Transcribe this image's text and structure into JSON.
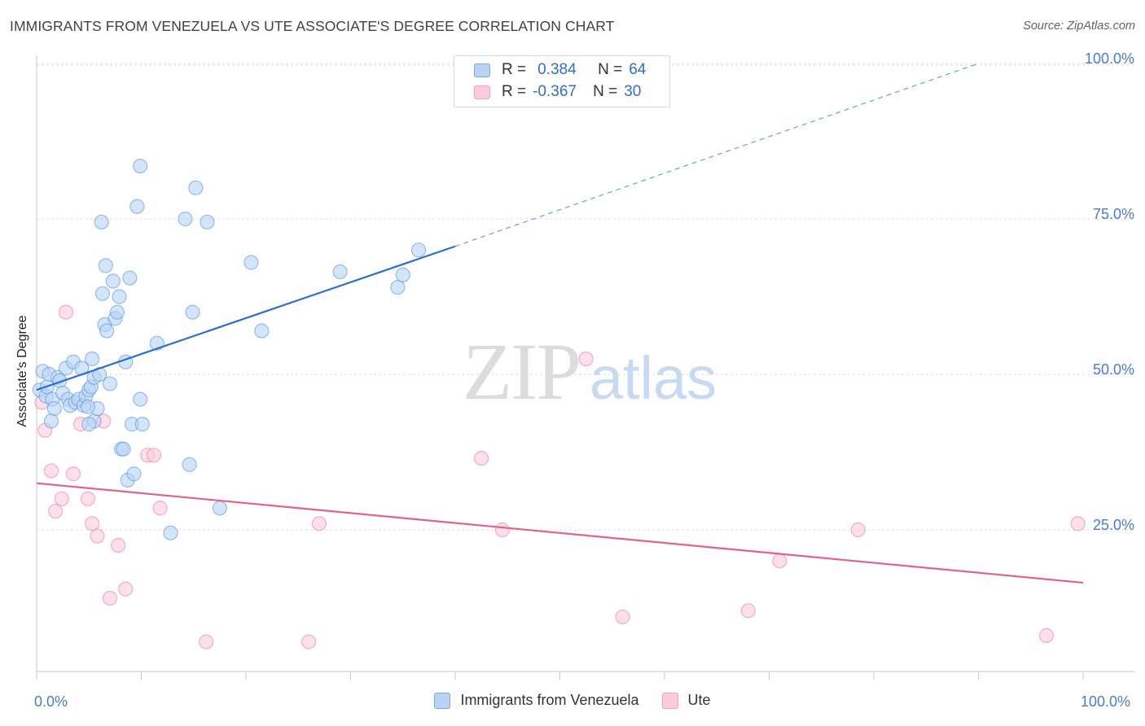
{
  "header": {
    "title": "IMMIGRANTS FROM VENEZUELA VS UTE ASSOCIATE'S DEGREE CORRELATION CHART",
    "source": "Source: ZipAtlas.com"
  },
  "watermark": {
    "zip": "ZIP",
    "atlas": "atlas"
  },
  "legend": {
    "r_label": "R =",
    "n_label": "N =",
    "rows": [
      {
        "r": "0.384",
        "n": "64",
        "color": "#4d8fe0",
        "fill": "#b9d3f5"
      },
      {
        "r": "-0.367",
        "n": "30",
        "color": "#e8769c",
        "fill": "#fbcbda"
      }
    ]
  },
  "chart_data": {
    "type": "scatter",
    "title": "IMMIGRANTS FROM VENEZUELA VS UTE ASSOCIATE'S DEGREE CORRELATION CHART",
    "xlabel": "",
    "ylabel": "Associate's Degree",
    "xlim": [
      0,
      100
    ],
    "ylim": [
      0,
      102
    ],
    "x_tick_labels": [
      "0.0%",
      "100.0%"
    ],
    "y_ticks": [
      25,
      50,
      75,
      100
    ],
    "y_tick_labels": [
      "25.0%",
      "50.0%",
      "75.0%",
      "100.0%"
    ],
    "grid": true,
    "legend_position": "bottom-center",
    "series": [
      {
        "name": "Immigrants from Venezuela",
        "color": "#4d8fe0",
        "fill": "#b9d3f5",
        "trend": {
          "x0": 0,
          "y0": 47.5,
          "x1": 40,
          "y1": 70.6,
          "dashed_to_x": 90,
          "dashed_to_y": 100
        },
        "points": [
          [
            0.3,
            47.5
          ],
          [
            0.6,
            50.5
          ],
          [
            0.9,
            46.5
          ],
          [
            1.0,
            48.0
          ],
          [
            1.2,
            50.0
          ],
          [
            1.5,
            46.0
          ],
          [
            1.7,
            44.5
          ],
          [
            1.4,
            42.5
          ],
          [
            2.0,
            49.5
          ],
          [
            2.2,
            49.0
          ],
          [
            2.5,
            47.0
          ],
          [
            2.8,
            51.0
          ],
          [
            3.0,
            46.0
          ],
          [
            3.2,
            45.0
          ],
          [
            3.5,
            52.0
          ],
          [
            3.7,
            45.5
          ],
          [
            4.0,
            46.0
          ],
          [
            4.3,
            51.0
          ],
          [
            4.5,
            45.0
          ],
          [
            4.7,
            46.5
          ],
          [
            5.0,
            47.5
          ],
          [
            5.2,
            48.0
          ],
          [
            5.5,
            42.5
          ],
          [
            5.0,
            42.0
          ],
          [
            5.3,
            52.5
          ],
          [
            5.5,
            49.5
          ],
          [
            5.8,
            44.5
          ],
          [
            6.0,
            50.0
          ],
          [
            6.2,
            74.5
          ],
          [
            6.3,
            63.0
          ],
          [
            6.5,
            58.0
          ],
          [
            6.7,
            57.0
          ],
          [
            6.6,
            67.5
          ],
          [
            7.3,
            65.0
          ],
          [
            7.5,
            59.0
          ],
          [
            7.7,
            60.0
          ],
          [
            7.9,
            62.5
          ],
          [
            8.1,
            38.0
          ],
          [
            8.3,
            38.0
          ],
          [
            8.5,
            52.0
          ],
          [
            8.7,
            33.0
          ],
          [
            8.9,
            65.5
          ],
          [
            9.1,
            42.0
          ],
          [
            9.3,
            34.0
          ],
          [
            9.6,
            77.0
          ],
          [
            9.9,
            83.5
          ],
          [
            10.1,
            42.0
          ],
          [
            9.9,
            46.0
          ],
          [
            11.5,
            55.0
          ],
          [
            12.8,
            24.5
          ],
          [
            14.2,
            75.0
          ],
          [
            14.6,
            35.5
          ],
          [
            14.9,
            60.0
          ],
          [
            15.2,
            80.0
          ],
          [
            16.3,
            74.5
          ],
          [
            17.5,
            28.5
          ],
          [
            20.5,
            68.0
          ],
          [
            21.5,
            57.0
          ],
          [
            29.0,
            66.5
          ],
          [
            34.5,
            64.0
          ],
          [
            35.0,
            66.0
          ],
          [
            36.5,
            70.0
          ],
          [
            7.0,
            48.5
          ],
          [
            4.9,
            44.8
          ]
        ]
      },
      {
        "name": "Ute",
        "color": "#e8769c",
        "fill": "#fbcbda",
        "trend": {
          "x0": 0,
          "y0": 32.5,
          "x1": 100,
          "y1": 16.5
        },
        "points": [
          [
            0.5,
            45.5
          ],
          [
            0.8,
            41.0
          ],
          [
            1.4,
            34.5
          ],
          [
            1.8,
            28.0
          ],
          [
            2.4,
            30.0
          ],
          [
            2.8,
            60.0
          ],
          [
            3.5,
            34.0
          ],
          [
            4.2,
            42.0
          ],
          [
            4.9,
            30.0
          ],
          [
            5.3,
            26.0
          ],
          [
            5.8,
            24.0
          ],
          [
            6.4,
            42.5
          ],
          [
            7.0,
            14.0
          ],
          [
            7.8,
            22.5
          ],
          [
            8.5,
            15.5
          ],
          [
            10.6,
            37.0
          ],
          [
            11.2,
            37.0
          ],
          [
            11.8,
            28.5
          ],
          [
            16.2,
            7.0
          ],
          [
            26.0,
            7.0
          ],
          [
            27.0,
            26.0
          ],
          [
            42.5,
            36.5
          ],
          [
            44.5,
            25.0
          ],
          [
            52.5,
            52.5
          ],
          [
            56.0,
            11.0
          ],
          [
            68.0,
            12.0
          ],
          [
            71.0,
            20.0
          ],
          [
            78.5,
            25.0
          ],
          [
            96.5,
            8.0
          ],
          [
            99.5,
            26.0
          ]
        ]
      }
    ]
  }
}
